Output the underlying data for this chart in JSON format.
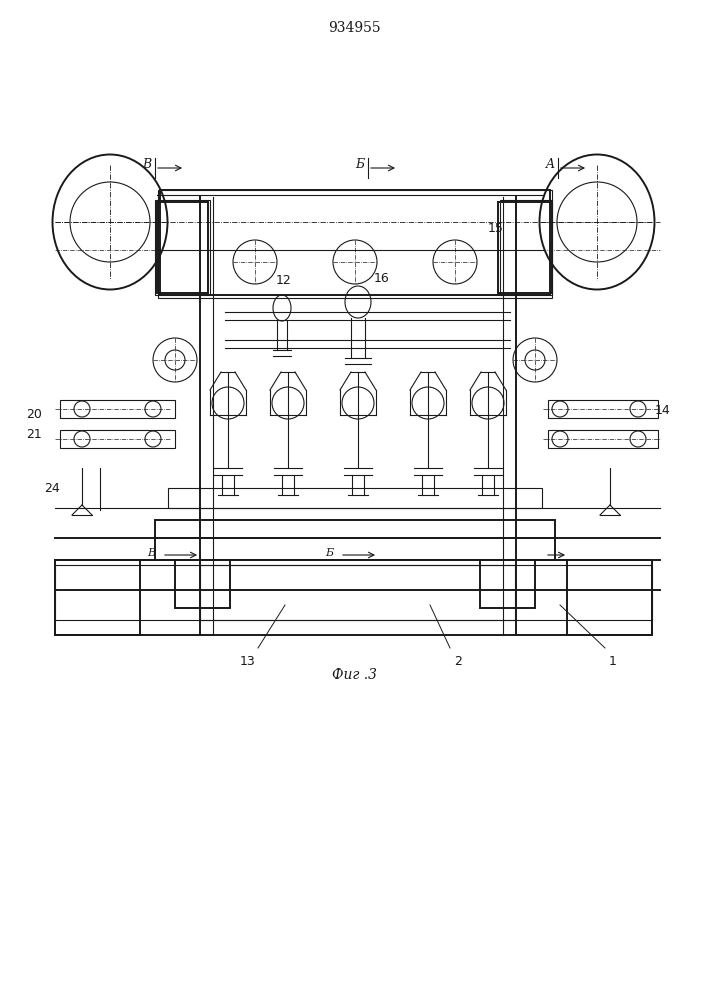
{
  "title": "934955",
  "fig_text": "Фиг .3",
  "background": "#ffffff",
  "line_color": "#1a1a1a",
  "lw": 0.8,
  "section_A": "A",
  "section_B": "Б",
  "section_V": "В",
  "num_1": "1",
  "num_2": "2",
  "num_12": "12",
  "num_13": "13",
  "num_14": "14",
  "num_15": "15",
  "num_16": "16",
  "num_20": "20",
  "num_21": "21",
  "num_24": "24"
}
